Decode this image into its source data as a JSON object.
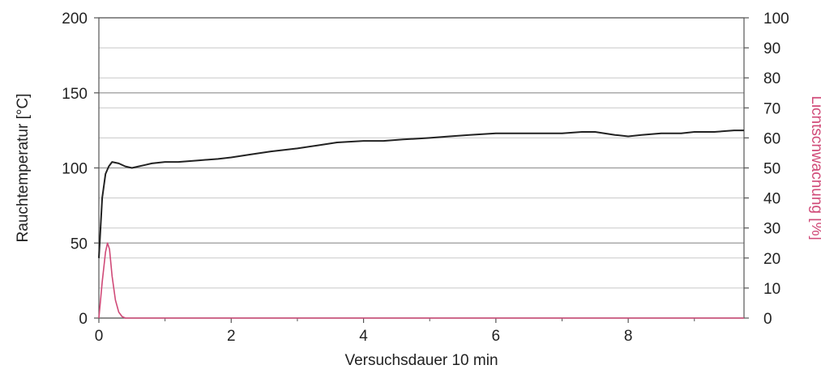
{
  "chart_data": {
    "type": "line",
    "xlabel": "Versuchsdauer 10 min",
    "ylabel_left": "Rauchtemperatur [°C]",
    "ylabel_right": "Lichtschwächung [%]",
    "xlim": [
      0,
      9.75
    ],
    "ylim_left": [
      0,
      200
    ],
    "ylim_right": [
      0,
      100
    ],
    "x_ticks": [
      "0",
      "2",
      "4",
      "6",
      "8"
    ],
    "y_ticks_left": [
      "0",
      "50",
      "100",
      "150",
      "200"
    ],
    "y_ticks_right": [
      "0",
      "10",
      "20",
      "30",
      "40",
      "50",
      "60",
      "70",
      "80",
      "90",
      "100"
    ],
    "grid": true,
    "colors": {
      "temperature": "#222222",
      "light_attenuation": "#d04a78",
      "grid": "#c8c8c8"
    },
    "series": [
      {
        "axis": "left",
        "x": [
          0,
          0.05,
          0.1,
          0.15,
          0.2,
          0.3,
          0.4,
          0.5,
          0.6,
          0.7,
          0.8,
          1.0,
          1.2,
          1.5,
          1.8,
          2.0,
          2.3,
          2.6,
          3.0,
          3.3,
          3.6,
          4.0,
          4.3,
          4.6,
          5.0,
          5.3,
          5.6,
          6.0,
          6.3,
          6.6,
          7.0,
          7.3,
          7.5,
          7.8,
          8.0,
          8.2,
          8.5,
          8.8,
          9.0,
          9.3,
          9.6,
          9.75
        ],
        "values": [
          40,
          80,
          96,
          101,
          104,
          103,
          101,
          100,
          101,
          102,
          103,
          104,
          104,
          105,
          106,
          107,
          109,
          111,
          113,
          115,
          117,
          118,
          118,
          119,
          120,
          121,
          122,
          123,
          123,
          123,
          123,
          124,
          124,
          122,
          121,
          122,
          123,
          123,
          124,
          124,
          125,
          125
        ]
      },
      {
        "axis": "right",
        "x": [
          0,
          0.05,
          0.1,
          0.13,
          0.16,
          0.2,
          0.25,
          0.3,
          0.35,
          0.4,
          1.0,
          2.0,
          3.0,
          4.0,
          5.0,
          6.0,
          7.0,
          8.0,
          9.0,
          9.75
        ],
        "values": [
          0,
          12,
          22,
          25,
          23,
          14,
          6,
          2,
          0.5,
          0,
          0,
          0,
          0,
          0,
          0,
          0,
          0,
          0,
          0,
          0
        ]
      }
    ]
  }
}
